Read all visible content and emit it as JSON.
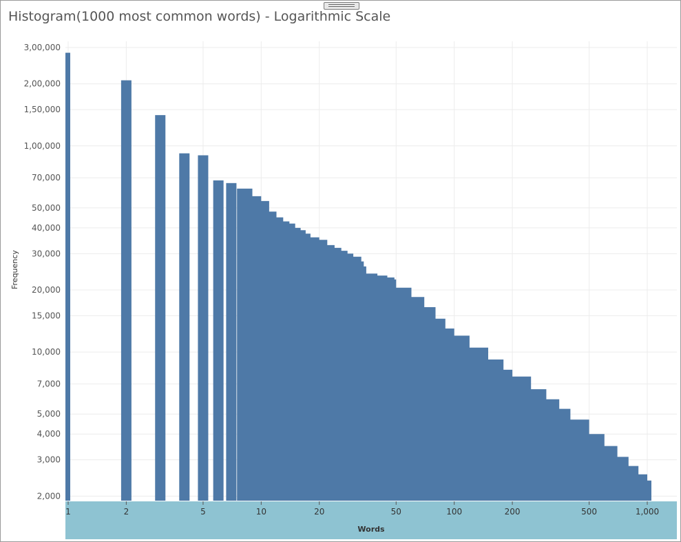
{
  "chart_data": {
    "type": "bar",
    "title": "Histogram(1000 most common words) - Logarithmic Scale",
    "xlabel": "Words",
    "ylabel": "Frequency",
    "x_scale": "log",
    "y_scale": "log",
    "xlim": [
      1,
      1000
    ],
    "ylim": [
      1900,
      300000
    ],
    "grid": true,
    "bar_color": "#4e79a7",
    "axis_band_color": "#8ec3d2",
    "x_ticks": [
      {
        "value": 1,
        "label": "1"
      },
      {
        "value": 2,
        "label": "2"
      },
      {
        "value": 5,
        "label": "5"
      },
      {
        "value": 10,
        "label": "10"
      },
      {
        "value": 20,
        "label": "20"
      },
      {
        "value": 50,
        "label": "50"
      },
      {
        "value": 100,
        "label": "100"
      },
      {
        "value": 200,
        "label": "200"
      },
      {
        "value": 500,
        "label": "500"
      },
      {
        "value": 1000,
        "label": "1,000"
      }
    ],
    "y_ticks": [
      {
        "value": 2000,
        "label": "2,000"
      },
      {
        "value": 3000,
        "label": "3,000"
      },
      {
        "value": 4000,
        "label": "4,000"
      },
      {
        "value": 5000,
        "label": "5,000"
      },
      {
        "value": 7000,
        "label": "7,000"
      },
      {
        "value": 10000,
        "label": "10,000"
      },
      {
        "value": 15000,
        "label": "15,000"
      },
      {
        "value": 20000,
        "label": "20,000"
      },
      {
        "value": 30000,
        "label": "30,000"
      },
      {
        "value": 40000,
        "label": "40,000"
      },
      {
        "value": 50000,
        "label": "50,000"
      },
      {
        "value": 70000,
        "label": "70,000"
      },
      {
        "value": 100000,
        "label": "1,00,000"
      },
      {
        "value": 150000,
        "label": "1,50,000"
      },
      {
        "value": 200000,
        "label": "2,00,000"
      },
      {
        "value": 300000,
        "label": "3,00,000"
      }
    ],
    "bars": [
      {
        "rank": 1,
        "value": 283000
      },
      {
        "rank": 2,
        "value": 208000
      },
      {
        "rank": 3,
        "value": 141000
      },
      {
        "rank": 4,
        "value": 92000
      },
      {
        "rank": 5,
        "value": 90000
      },
      {
        "rank": 6,
        "value": 68000
      },
      {
        "rank": 7,
        "value": 66000
      }
    ],
    "tail_area": {
      "x": [
        8,
        9,
        10,
        11,
        12,
        13,
        14,
        15,
        16,
        17,
        18,
        20,
        22,
        24,
        26,
        28,
        30,
        33,
        34,
        35,
        40,
        45,
        49,
        50,
        60,
        70,
        80,
        90,
        100,
        120,
        150,
        180,
        200,
        250,
        300,
        350,
        400,
        500,
        600,
        700,
        800,
        900,
        1000
      ],
      "values": [
        62000,
        57000,
        54000,
        48000,
        45000,
        43000,
        42000,
        40000,
        39000,
        37500,
        36000,
        35000,
        33000,
        32000,
        31000,
        30000,
        29000,
        27500,
        26000,
        24000,
        23500,
        23000,
        22500,
        20500,
        18500,
        16500,
        14500,
        13000,
        12000,
        10500,
        9200,
        8200,
        7600,
        6600,
        5900,
        5300,
        4700,
        4000,
        3500,
        3100,
        2800,
        2550,
        2380
      ]
    }
  }
}
